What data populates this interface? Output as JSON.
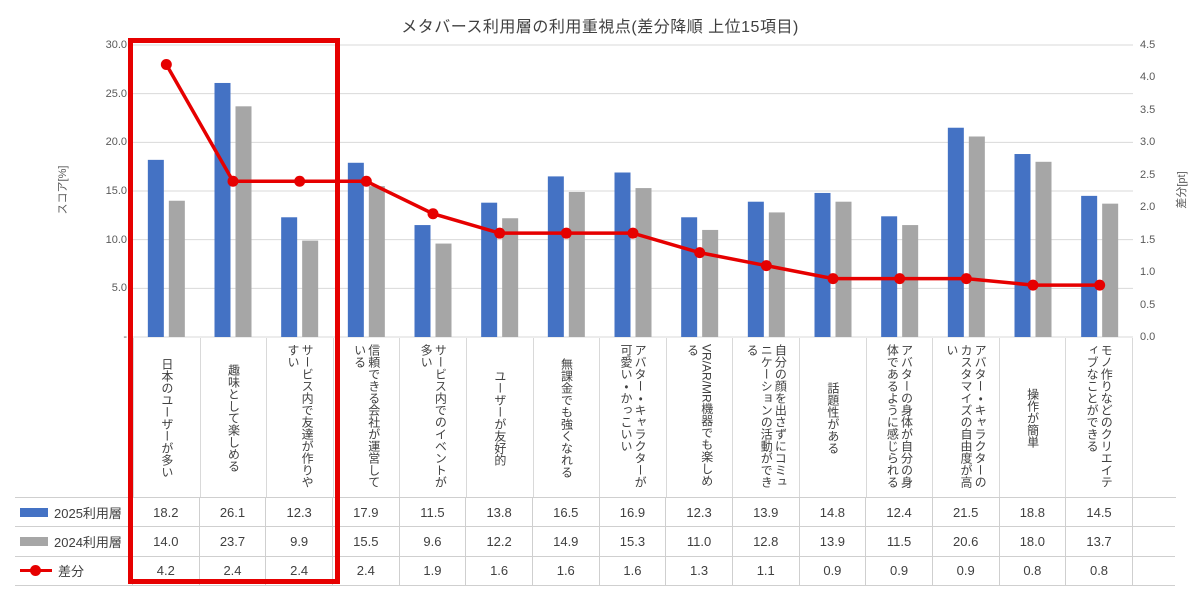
{
  "chart_data": {
    "type": "bar",
    "subtype": "grouped-bar-with-line-combo",
    "title": "メタバース利用層の利用重視点(差分降順 上位15項目)",
    "categories": [
      "日本のユーザーが多い",
      "趣味として楽しめる",
      "サービス内で友達が作りやすい",
      "信頼できる会社が運営している",
      "サービス内でのイベントが多い",
      "ユーザーが友好的",
      "無課金でも強くなれる",
      "アバター・キャラクターが可愛い・かっこいい",
      "VR/AR/MR機器でも楽しめる",
      "自分の顔を出さずにコミュニケーションの活動ができる",
      "話題性がある",
      "アバターの身体が自分の身体であるように感じられる",
      "アバター・キャラクターのカスタマイズの自由度が高い",
      "操作が簡単",
      "モノ作りなどのクリエイティブなことができる"
    ],
    "series": [
      {
        "name": "2025利用層",
        "type": "bar",
        "color": "#4472c4",
        "axis": "left",
        "values": [
          18.2,
          26.1,
          12.3,
          17.9,
          11.5,
          13.8,
          16.5,
          16.9,
          12.3,
          13.9,
          14.8,
          12.4,
          21.5,
          18.8,
          14.5
        ]
      },
      {
        "name": "2024利用層",
        "type": "bar",
        "color": "#a6a6a6",
        "axis": "left",
        "values": [
          14.0,
          23.7,
          9.9,
          15.5,
          9.6,
          12.2,
          14.9,
          15.3,
          11.0,
          12.8,
          13.9,
          11.5,
          20.6,
          18.0,
          13.7
        ]
      },
      {
        "name": "差分",
        "type": "line",
        "color": "#e60000",
        "axis": "right",
        "values": [
          4.2,
          2.4,
          2.4,
          2.4,
          1.9,
          1.6,
          1.6,
          1.6,
          1.3,
          1.1,
          0.9,
          0.9,
          0.9,
          0.8,
          0.8
        ]
      }
    ],
    "left_axis": {
      "title": "スコア[%]",
      "min": 0,
      "max": 30,
      "step": 5,
      "tick_labels": [
        "30.0",
        "25.0",
        "20.0",
        "15.0",
        "10.0",
        "5.0",
        "-"
      ]
    },
    "right_axis": {
      "title": "差分[pt]",
      "min": 0,
      "max": 4.5,
      "step": 0.5,
      "tick_labels": [
        "4.5",
        "4.0",
        "3.5",
        "3.0",
        "2.5",
        "2.0",
        "1.5",
        "1.0",
        "0.5",
        "0.0"
      ]
    },
    "grid": true,
    "legend_position": "data-table-left-column",
    "data_table_shown": true,
    "highlight": {
      "shape": "rectangle",
      "color": "#e60000",
      "covers_top_n_categories": 3
    }
  }
}
